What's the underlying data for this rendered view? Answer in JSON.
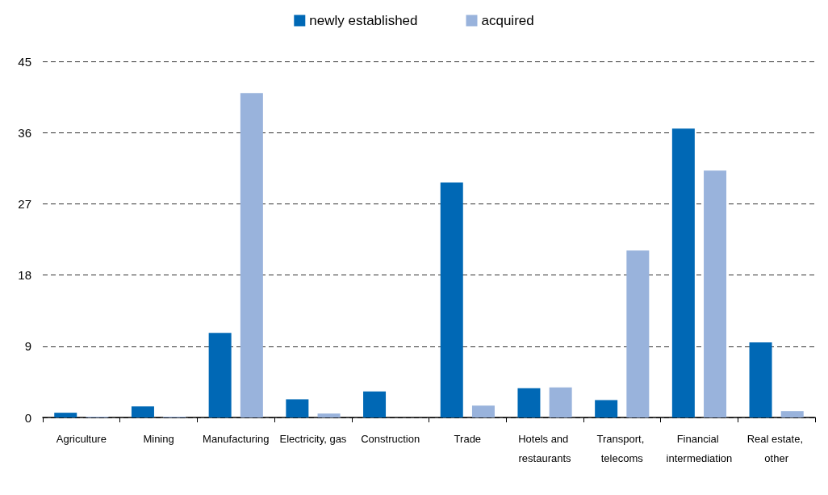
{
  "chart_data": {
    "type": "bar",
    "categories": [
      "Agriculture",
      "Mining",
      "Manufacturing",
      "Electricity, gas",
      "Construction",
      "Trade",
      "Hotels and restaurants",
      "Transport, telecoms",
      "Financial intermediation",
      "Real estate, other"
    ],
    "series": [
      {
        "name": "newly established",
        "color": "#0068b5",
        "values": [
          0.6,
          1.4,
          10.7,
          2.3,
          3.3,
          29.7,
          3.7,
          2.2,
          36.5,
          9.5
        ]
      },
      {
        "name": "acquired",
        "color": "#99b3dc",
        "values": [
          0.1,
          0.1,
          41.0,
          0.5,
          0,
          1.5,
          3.8,
          21.1,
          31.2,
          0.8
        ]
      }
    ],
    "ylim": [
      0,
      45
    ],
    "yticks": [
      0,
      9,
      18,
      27,
      36,
      45
    ],
    "grid": "y",
    "legend": "top"
  }
}
